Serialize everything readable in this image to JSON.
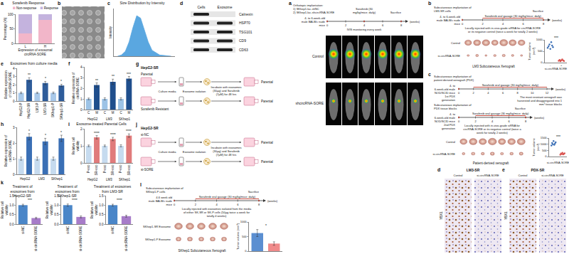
{
  "chart_data": [
    {
      "label": "a",
      "type": "bar",
      "stacked": true,
      "title": "Sorafenib Response",
      "categories": [
        "L",
        "H"
      ],
      "series": [
        {
          "name": "Non-response",
          "color": "#f2b6c9",
          "values": [
            35,
            80
          ]
        },
        {
          "name": "Response",
          "color": "#c4b3de",
          "values": [
            65,
            20
          ]
        }
      ],
      "ylim": [
        0,
        100
      ],
      "yticks": [
        0,
        50,
        100
      ],
      "y_label": "Percentage (%)",
      "x_label": "Expression of exosomal circRNA-SORE",
      "legend": "top"
    },
    {
      "label": "c",
      "type": "line",
      "title": "Size Distribution by Intensity",
      "y_label": "Intensity",
      "x": [
        20,
        40,
        60,
        80,
        100,
        120,
        140,
        160,
        180,
        200,
        240,
        300
      ],
      "values": [
        0,
        0.5,
        2,
        6,
        12,
        17,
        16,
        11,
        6,
        2.5,
        0.5,
        0
      ],
      "color": "#5aa7e0",
      "xlim": [
        0,
        320
      ],
      "ylim": [
        0,
        20
      ],
      "tick_labels": false
    },
    {
      "label": "e",
      "type": "bar",
      "title": "Exosomes from culture media",
      "categories": [
        "HepG2-P",
        "HepG2-SR",
        "LM3-P",
        "LM3-SR",
        "SKhep1-P",
        "SKhep1-SR"
      ],
      "values": [
        1,
        2.6,
        1,
        2.2,
        1,
        1.9
      ],
      "errors": [
        0.1,
        0.25,
        0.08,
        0.2,
        0.1,
        0.15
      ],
      "colors": [
        "#a9c9ea",
        "#2e5c9a",
        "#a9c9ea",
        "#2e5c9a",
        "#a9c9ea",
        "#2e5c9a"
      ],
      "significance": [
        null,
        "**",
        null,
        "*",
        null,
        "*"
      ],
      "ylim": [
        0,
        4
      ],
      "yticks": [
        0,
        1,
        2,
        3,
        4
      ],
      "y_label": "Relative expression of circRNA-SORE"
    },
    {
      "label": "f",
      "type": "bar",
      "categories": [
        "C",
        "M",
        "C",
        "M",
        "C",
        "M"
      ],
      "groups": [
        "HepG2",
        "LM3",
        "SKhep1"
      ],
      "values": [
        1,
        2.3,
        1,
        2.6,
        1,
        2.9
      ],
      "errors": [
        0.08,
        0.2,
        0.1,
        0.25,
        0.1,
        0.2
      ],
      "colors": [
        "#9dc3e6",
        "#1f4e8c",
        "#9dc3e6",
        "#1f4e8c",
        "#9dc3e6",
        "#1f4e8c"
      ],
      "significance": [
        null,
        "**",
        null,
        "**",
        null,
        "***"
      ],
      "ylim": [
        0,
        4
      ],
      "yticks": [
        0,
        1,
        2,
        3,
        4
      ],
      "y_label": "Relative expression of circRNA-SORE"
    },
    {
      "label": "h",
      "type": "bar",
      "categories": [
        null,
        null,
        null,
        null,
        null,
        null
      ],
      "groups": [
        "HepG2",
        "LM3",
        "SKhep1"
      ],
      "values": [
        1,
        2.4,
        1,
        2.1,
        1,
        2.3
      ],
      "errors": [
        0.1,
        0.2,
        0.1,
        0.2,
        0.1,
        0.2
      ],
      "colors": [
        "#c6dbef",
        "#3a6fb5",
        "#c6dbef",
        "#3a6fb5",
        "#c6dbef",
        "#3a6fb5"
      ],
      "significance": [
        null,
        "*",
        null,
        "*",
        null,
        "*"
      ],
      "ylim": [
        0,
        3
      ],
      "yticks": [
        0,
        1,
        2,
        3
      ],
      "y_label": "Relative expression of circRNA-SORE"
    },
    {
      "label": "i",
      "type": "bar",
      "title": "Exosome-treated Parental Cells",
      "categories": [
        "P-exo",
        "SR-exo",
        "P-exo",
        "SR-exo",
        "P-exo",
        "SR-exo"
      ],
      "groups": [
        "HepG2",
        "LM3",
        "SKhep1"
      ],
      "values": [
        1,
        1.5,
        1,
        1.4,
        1,
        1.6
      ],
      "errors": [
        0.05,
        0.1,
        0.05,
        0.1,
        0.06,
        0.1
      ],
      "colors": [
        "#c6dbef",
        "#e07b7b",
        "#c6dbef",
        "#e07b7b",
        "#c6dbef",
        "#e07b7b"
      ],
      "significance": [
        null,
        "****",
        null,
        "****",
        null,
        "****"
      ],
      "ylim": [
        0,
        2
      ],
      "yticks": [
        0,
        1,
        2
      ],
      "y_label": "Relative cell viability"
    },
    {
      "label": "k",
      "type": "bar",
      "title": "Treatment of exosomes from HepG2-SR",
      "categories": [
        "si-NC",
        "si-circRNA-SORE"
      ],
      "values": [
        1,
        0.32
      ],
      "errors": [
        0.05,
        0.04
      ],
      "colors": [
        "#4a86c8",
        "#a77cc9"
      ],
      "significance": "***",
      "ylim": [
        0,
        1.5
      ],
      "yticks": [
        {
          "value": 0,
          "label": "0.0"
        },
        0.5,
        {
          "value": 1,
          "label": "1.0"
        },
        1.5
      ],
      "y_label": "Relative cell viability"
    },
    {
      "type": "bar",
      "title": "Treatment of exosomes from SKhep1-SR",
      "categories": [
        "si-NC",
        "si-circRNA-SORE"
      ],
      "values": [
        1,
        0.38
      ],
      "errors": [
        0.06,
        0.05
      ],
      "colors": [
        "#4a86c8",
        "#a77cc9"
      ],
      "significance": "****",
      "ylim": [
        0,
        1.5
      ],
      "yticks": [
        {
          "value": 0,
          "label": "0.0"
        },
        0.5,
        {
          "value": 1,
          "label": "1.0"
        },
        1.5
      ],
      "y_label": "Relative cell viability"
    },
    {
      "type": "bar",
      "title": "Treatment of exosomes from LM3-SR",
      "categories": [
        "si-NC",
        "si-circRNA-SORE"
      ],
      "values": [
        1,
        0.42
      ],
      "errors": [
        0.05,
        0.05
      ],
      "colors": [
        "#4a86c8",
        "#a77cc9"
      ],
      "significance": "****",
      "ylim": [
        0,
        1.5
      ],
      "yticks": [
        {
          "value": 0,
          "label": "0.0"
        },
        0.5,
        {
          "value": 1,
          "label": "1.0"
        },
        1.5
      ],
      "y_label": "Relative cell viability"
    },
    {
      "type": "bar",
      "categories": [
        "SKhep1-SR Exosome",
        "SKhep1-P Exosome"
      ],
      "values": [
        620,
        260
      ],
      "errors": [
        120,
        60
      ],
      "colors": [
        "#5b8fd1",
        "#f08a8a"
      ],
      "significance": "*",
      "ylim": [
        0,
        1000
      ],
      "yticks": [
        0,
        500,
        1000
      ],
      "y_label": "Tumor volume (mm³)",
      "tick_labels": "y"
    },
    {
      "type": "scatter",
      "categories": [
        "-",
        "+"
      ],
      "x_label": "si-circRNA-SORE",
      "points": [
        [
          650,
          720,
          800,
          600,
          900,
          750,
          680
        ],
        [
          80,
          120,
          60,
          100,
          140,
          90,
          70
        ]
      ],
      "colors": [
        "#3b6fb6",
        "#d9534f"
      ],
      "significance": "***",
      "ylim": [
        0,
        1000
      ],
      "yticks": [
        0,
        500,
        1000
      ],
      "y_label": "Tumor volume (mm³)"
    },
    {
      "type": "scatter",
      "categories": [
        "-",
        "+"
      ],
      "x_label": "si-circRNA-SORE",
      "points": [
        [
          900,
          1100,
          1000,
          1250,
          950,
          1050,
          1150
        ],
        [
          150,
          250,
          200,
          300,
          180,
          220,
          260
        ]
      ],
      "colors": [
        "#3b6fb6",
        "#d9534f"
      ],
      "significance": "***",
      "ylim": [
        0,
        1500
      ],
      "yticks": [
        0,
        500,
        1000,
        1500
      ],
      "y_label": "Tumor volume (mm³)"
    }
  ],
  "diagrams": {
    "left_b": {
      "label": "b"
    },
    "left_d": {
      "label": "d",
      "columns": [
        "Cells",
        "Exosome"
      ],
      "rows": [
        "Calnexin",
        "HSP70",
        "TSG101",
        "CD9",
        "CD63"
      ],
      "bands": [
        [
          1,
          0
        ],
        [
          1,
          1
        ],
        [
          1,
          1
        ],
        [
          1,
          1
        ],
        [
          1,
          1
        ]
      ]
    },
    "left_g": {
      "label": "g",
      "source": "HepG2-SR",
      "donors": [
        "Parental",
        "Sorafenib Resistant"
      ],
      "media": "Culture media",
      "isolation": "Exosome isolation",
      "treatment": "Incubate with exosomes (30µg) and Sorafenib (7µM) for 48 hrs",
      "recipients": [
        "Parental",
        "Parental"
      ]
    },
    "left_j": {
      "label": "j",
      "source": "HepG2-SR",
      "donors": [
        "si-NC",
        "si-SORE"
      ],
      "media": "Culture media",
      "isolation": "Exosome isolation",
      "treatment": "Incubate with exosomes (30µg) and Sorafenib (7µM) for 48 hrs",
      "recipients": [
        "Parental",
        "Parental"
      ]
    },
    "left_l": {
      "label": "l",
      "timeline": {
        "mice": "4-6 week old male BALB/c nude mice",
        "ticks": [
          0,
          2,
          4,
          6,
          8
        ],
        "unit": "(weeks)",
        "events": [
          {
            "text": "Subcutaneous implantation of SKhep1-P cells",
            "at": 0,
            "side": "above"
          },
          {
            "text": "Sorafenib oral gavage (30 mg/kg/mice; daily)",
            "from": 2,
            "to": 8,
            "side": "above"
          },
          {
            "text": "Sacrifice",
            "at": 8,
            "side": "above"
          },
          {
            "text": "Locally injected with exosomes isolated from the media of either SK-SR or SK-P cells (50µg twice a week for totally 4 weeks)",
            "at": 4,
            "side": "below"
          }
        ]
      },
      "counts": [
        5,
        5
      ],
      "caption": "SKhep1 Subcutaneous Xenograft"
    },
    "right_a": {
      "label": "a",
      "timeline": {
        "mice": "4- to 6-week-old male BALB/c nude mice",
        "ticks": [
          0,
          2,
          4,
          6,
          8
        ],
        "unit": "(weeks)",
        "events": [
          {
            "text": [
              "Orthotopic implantation:",
              "1) SKhep1-luc-shNC",
              "2) SKhep1-luc-shcircRNA-SORE"
            ],
            "at": 0,
            "side": "above"
          },
          {
            "text": "Sorafenib (30 mg/kg/mice; daily)",
            "at": 4,
            "side": "above"
          },
          {
            "text": "Sacrifice",
            "at": 8,
            "side": "above"
          },
          {
            "text": "IVIS monitoring every week",
            "at": 4,
            "side": "below"
          }
        ]
      },
      "rows": [
        "Control",
        "shcircRNA-SORE"
      ],
      "counts": [
        6,
        6
      ]
    },
    "right_b": {
      "label": "b",
      "timeline": {
        "mice": "4- to 6-week-old male BALB/c nude mice",
        "ticks": [
          0,
          2,
          4,
          6,
          8
        ],
        "unit": "(weeks)",
        "events": [
          {
            "text": "Subcutaneous implantation of LM3-SR cells",
            "at": 0,
            "side": "above"
          },
          {
            "text": "Sorafenib oral gavage (30 mg/kg/mice; daily)",
            "from": 2,
            "to": 8,
            "side": "above"
          },
          {
            "text": "Sacrifice",
            "at": 8,
            "side": "above"
          },
          {
            "text": "Locally injected with in-vivo-grade siRNA for circRNA-SORE or its negative control (twice a week for totally 2 weeks)",
            "at": 4,
            "side": "below"
          }
        ]
      },
      "rows": [
        "Control",
        "si-circRNA-SORE"
      ],
      "caption": "LM3 Subcutaneous Xenograft"
    },
    "right_c": {
      "label": "c",
      "timelines": [
        {
          "mice": "4- to 6-week-old male NOD/SCID mice",
          "generation": "1st PDX generation",
          "ticks": [
            0,
            2,
            4,
            6,
            8,
            10,
            12
          ],
          "unit": "(weeks)",
          "events": [
            {
              "text": "Subcutaneous implantation of patient derived xenograft (PDX)",
              "at": 0,
              "side": "above"
            },
            {
              "text": "Sorafenib oral gavage (30 mg/kg/mice; daily)",
              "from": 2,
              "to": 12,
              "side": "above"
            },
            {
              "text": "The most resistant xenograft was harvested and disaggregated into 1 mm³ tissue blocks",
              "at": 12,
              "side": "below"
            }
          ]
        },
        {
          "mice": "4- to 6-week-old male NOD/SCID mice",
          "generation": "2nd PDX generation",
          "ticks": [
            0,
            2,
            4,
            6,
            8
          ],
          "unit": "(weeks)",
          "events": [
            {
              "text": "Subcutaneous implantation of PDX tissue blocks",
              "at": 0,
              "side": "above"
            },
            {
              "text": "Sorafenib oral gavage (30 mg/kg/mice; daily)",
              "from": 2,
              "to": 8,
              "side": "above"
            },
            {
              "text": "Sacrifice",
              "at": 8,
              "side": "above"
            },
            {
              "text": "Locally injected with in-vivo-grade siRNA for circRNA-SORE or its negative control (twice a week for totally 2 weeks)",
              "at": 4,
              "side": "below"
            }
          ]
        }
      ],
      "rows": [
        "Control",
        "si-circRNA-SORE"
      ],
      "caption": "Patient-derived xenograft"
    },
    "right_d": {
      "label": "d",
      "title": "LM3-SR",
      "columns": [
        "Control",
        "si-circRNA-SORE"
      ],
      "stain": "YBX1"
    },
    "right_e": {
      "label": "e",
      "title": "PDX-SR",
      "columns": [
        "Control",
        "si-circRNA-SORE"
      ],
      "stain": "YBX1"
    }
  }
}
